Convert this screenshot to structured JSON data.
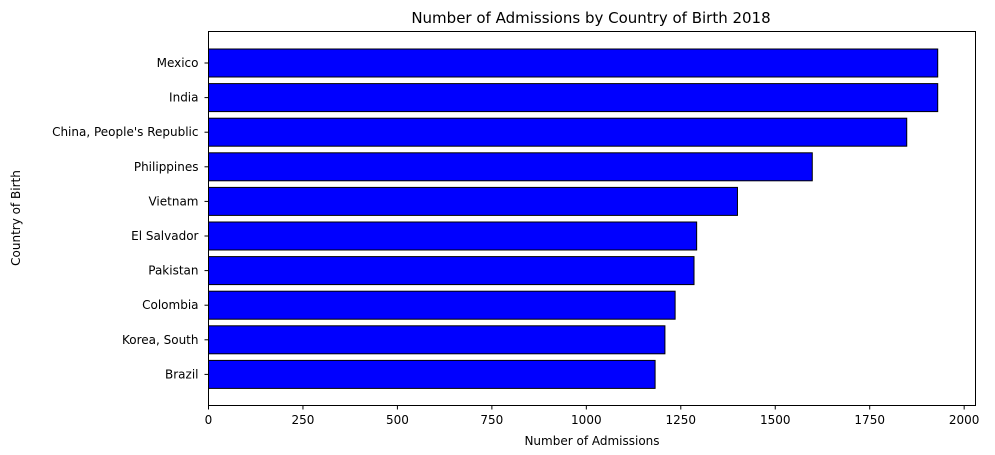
{
  "chart_data": {
    "type": "bar",
    "orientation": "horizontal",
    "title": "Number of Admissions by Country of Birth 2018",
    "xlabel": "Number of Admissions",
    "ylabel": "Country of Birth",
    "xlim": [
      0,
      2030
    ],
    "xticks": [
      0,
      250,
      500,
      750,
      1000,
      1250,
      1500,
      1750,
      2000
    ],
    "grid": false,
    "legend": "none",
    "bar_color": "#0000ff",
    "bar_edge_color": "#000000",
    "categories": [
      "Mexico",
      "India",
      "China, People's Republic",
      "Philippines",
      "Vietnam",
      "El Salvador",
      "Pakistan",
      "Colombia",
      "Korea, South",
      "Brazil"
    ],
    "values": [
      1930,
      1930,
      1848,
      1598,
      1400,
      1292,
      1285,
      1235,
      1208,
      1182
    ]
  }
}
